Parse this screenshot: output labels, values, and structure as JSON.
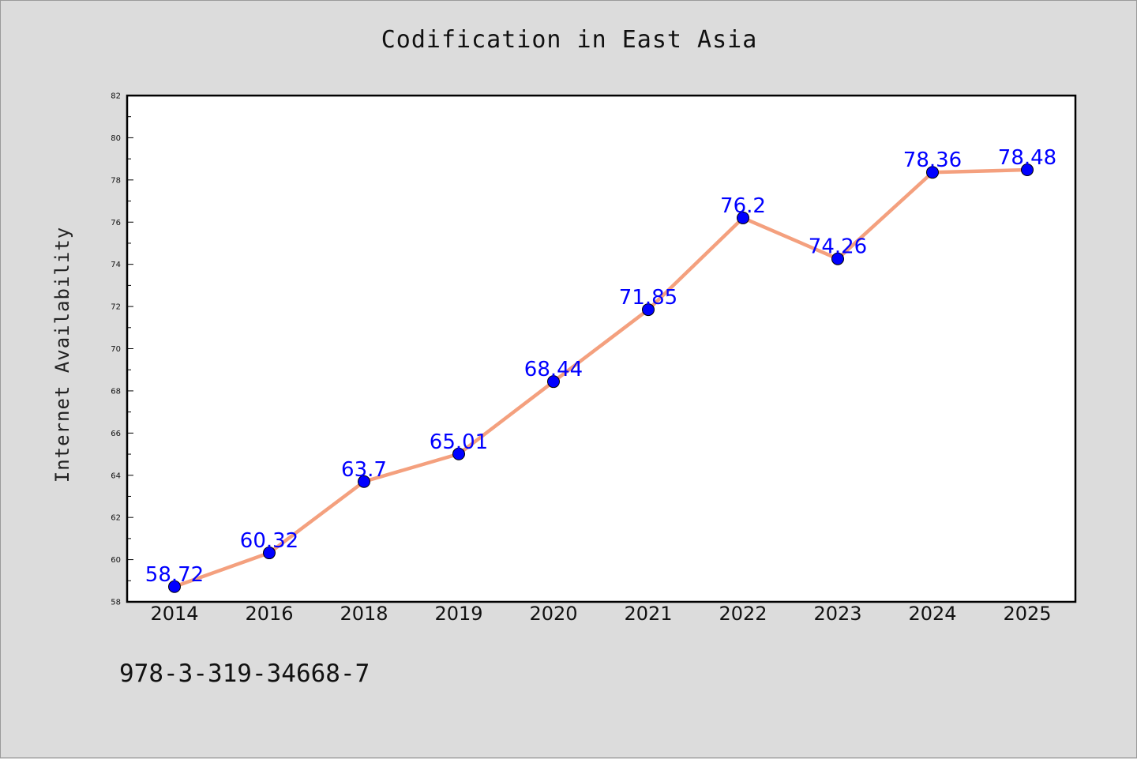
{
  "chart_data": {
    "type": "line",
    "title": "Codification in East Asia",
    "xlabel": "",
    "ylabel": "Internet Availability",
    "categories": [
      "2014",
      "2016",
      "2018",
      "2019",
      "2020",
      "2021",
      "2022",
      "2023",
      "2024",
      "2025"
    ],
    "series": [
      {
        "values": [
          58.72,
          60.32,
          63.7,
          65.01,
          68.44,
          71.85,
          76.2,
          74.26,
          78.36,
          78.48
        ],
        "data_labels": [
          "58.72",
          "60.32",
          "63.7",
          "65.01",
          "68.44",
          "71.85",
          "76.2",
          "74.26",
          "78.36",
          "78.48"
        ]
      }
    ],
    "ylim": [
      58,
      82
    ],
    "yticks": [
      "58",
      "60",
      "62",
      "64",
      "66",
      "68",
      "70",
      "72",
      "74",
      "76",
      "78",
      "80",
      "82"
    ],
    "grid": false,
    "legend": "none",
    "colors": {
      "line": "#f4a07e",
      "marker": "#0000ff",
      "label": "#0000ff",
      "background": "#dcdcdc",
      "plot_area": "#ffffff"
    }
  },
  "footer": {
    "isbn": "978-3-319-34668-7"
  }
}
